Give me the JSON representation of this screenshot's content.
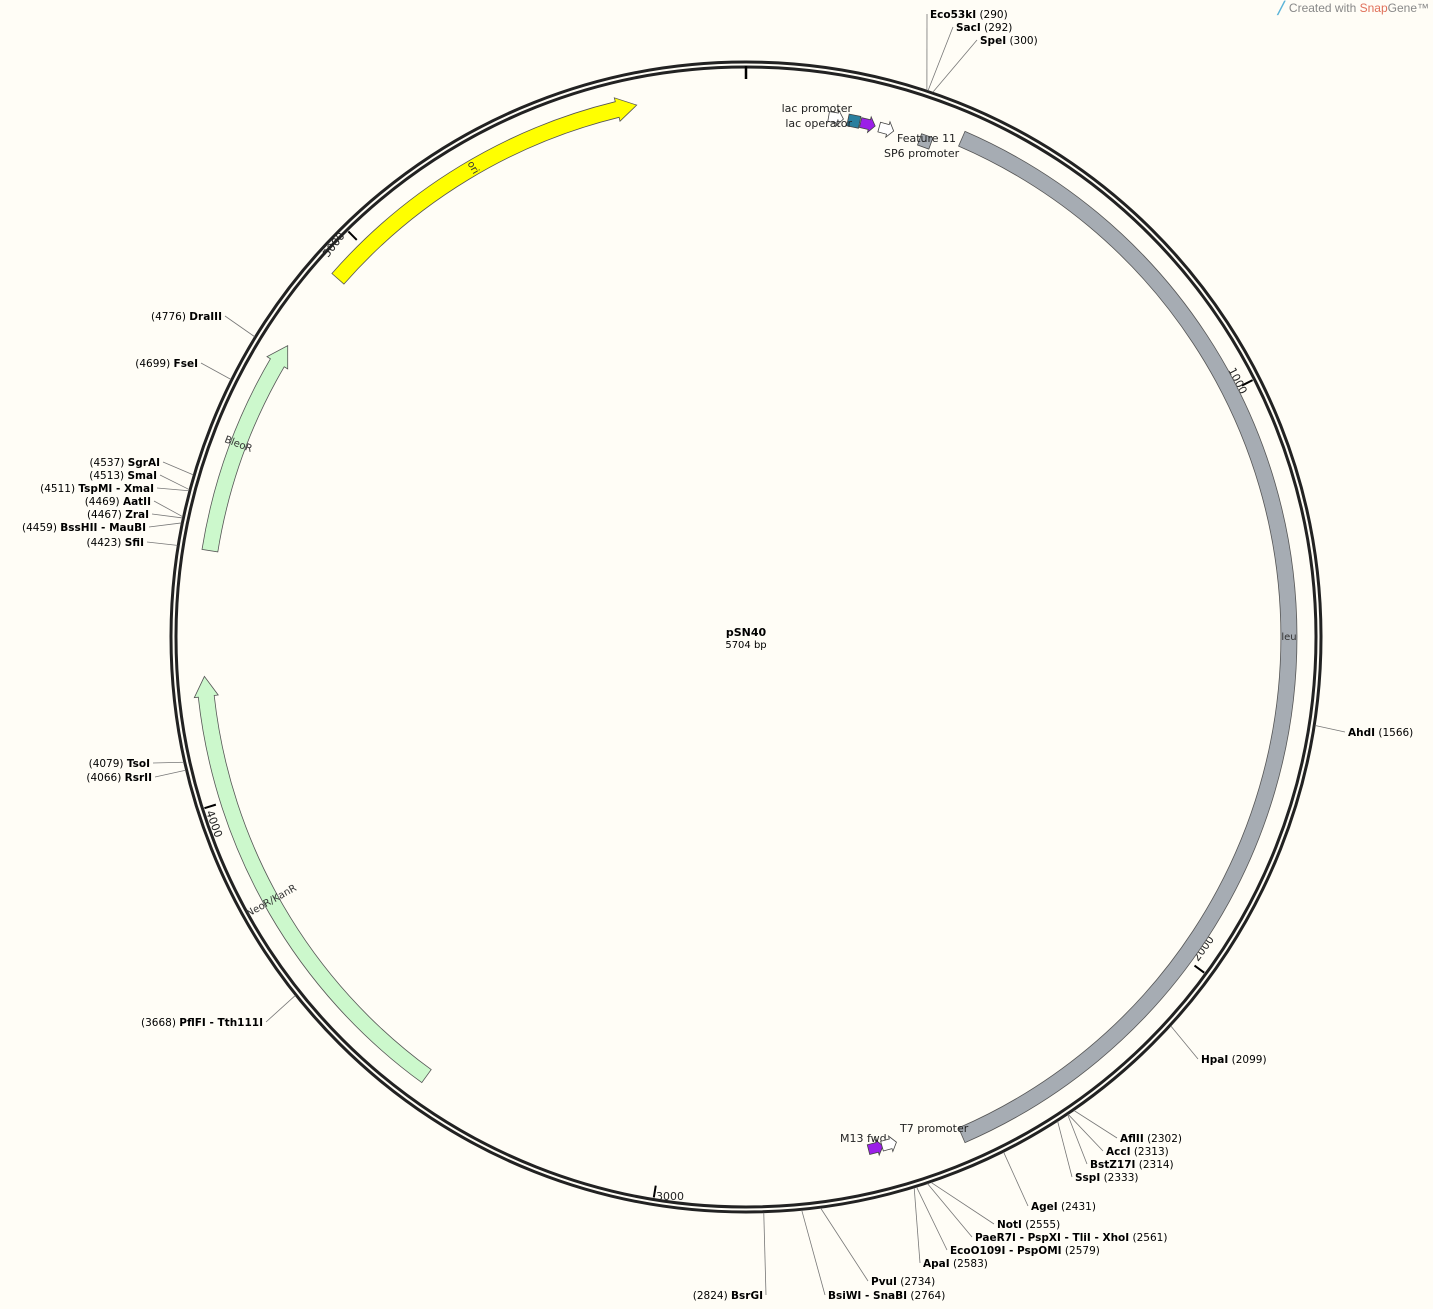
{
  "branding": {
    "prefix": "Created with ",
    "snap": "Snap",
    "gene": "Gene™",
    "logo_icon": "snapgene-logo-icon"
  },
  "plasmid": {
    "name": "pSN40",
    "length_label": "5704 bp",
    "length": 5704
  },
  "ticks": [
    {
      "bp": 1000,
      "label": "1000"
    },
    {
      "bp": 2000,
      "label": "2000"
    },
    {
      "bp": 3000,
      "label": "3000"
    },
    {
      "bp": 4000,
      "label": "4000"
    },
    {
      "bp": 5000,
      "label": "5000"
    }
  ],
  "features": [
    {
      "name": "ori",
      "start": 4932,
      "end": 5520,
      "type": "arrow",
      "color": "#ffff00",
      "direction": "forward"
    },
    {
      "name": "leu",
      "start": 371,
      "end": 2481,
      "type": "bar",
      "color": "#a6acb3",
      "direction": "none"
    },
    {
      "name": "BleoR",
      "start": 4423,
      "end": 4792,
      "type": "arrow",
      "color": "#ccf8cc",
      "direction": "forward"
    },
    {
      "name": "NeoR/KanR",
      "start": 3423,
      "end": 4212,
      "type": "arrow",
      "color": "#ccf8cc",
      "direction": "forward"
    }
  ],
  "small_features": [
    {
      "name": "lac promoter",
      "bp": 155,
      "color": "#ffffff",
      "shape": "arrow"
    },
    {
      "name": "lac operator",
      "bp": 187,
      "color": "#2a7f9e",
      "shape": "box"
    },
    {
      "name": "",
      "bp": 211,
      "color": "#9b1fe8",
      "shape": "arrow"
    },
    {
      "name": "SP6 promoter",
      "bp": 244,
      "color": "#ffffff",
      "shape": "arrow"
    },
    {
      "name": "Feature 11",
      "bp": 315,
      "color": "#a6acb3",
      "shape": "box"
    },
    {
      "name": "M13 fwd",
      "bp": 2627,
      "color": "#9b1fe8",
      "shape": "arrow-rev"
    },
    {
      "name": "T7 promoter",
      "bp": 2603,
      "color": "#ffffff",
      "shape": "arrow-rev"
    }
  ],
  "enzymes": [
    {
      "name": "Eco53kI",
      "pos": "(290)",
      "bp": 290
    },
    {
      "name": "SacI",
      "pos": "(292)",
      "bp": 292
    },
    {
      "name": "SpeI",
      "pos": "(300)",
      "bp": 300
    },
    {
      "name": "AhdI",
      "pos": "(1566)",
      "bp": 1566
    },
    {
      "name": "HpaI",
      "pos": "(2099)",
      "bp": 2099
    },
    {
      "name": "AflII",
      "pos": "(2302)",
      "bp": 2302
    },
    {
      "name": "AccI",
      "pos": "(2313)",
      "bp": 2313
    },
    {
      "name": "BstZ17I",
      "pos": "(2314)",
      "bp": 2314
    },
    {
      "name": "SspI",
      "pos": "(2333)",
      "bp": 2333
    },
    {
      "name": "AgeI",
      "pos": "(2431)",
      "bp": 2431
    },
    {
      "name": "NotI",
      "pos": "(2555)",
      "bp": 2555
    },
    {
      "name": "PaeR7I - PspXI - TliI - XhoI",
      "pos": "(2561)",
      "bp": 2561
    },
    {
      "name": "EcoO109I - PspOMI",
      "pos": "(2579)",
      "bp": 2579
    },
    {
      "name": "ApaI",
      "pos": "(2583)",
      "bp": 2583
    },
    {
      "name": "PvuI",
      "pos": "(2734)",
      "bp": 2734
    },
    {
      "name": "BsiWI - SnaBI",
      "pos": "(2764)",
      "bp": 2764
    },
    {
      "name": "BsrGI",
      "pos": "(2824)",
      "bp": 2824
    },
    {
      "name": "PflFI - Tth111I",
      "pos": "(3668)",
      "bp": 3668
    },
    {
      "name": "RsrII",
      "pos": "(4066)",
      "bp": 4066
    },
    {
      "name": "TsoI",
      "pos": "(4079)",
      "bp": 4079
    },
    {
      "name": "SfiI",
      "pos": "(4423)",
      "bp": 4423
    },
    {
      "name": "BssHII - MauBI",
      "pos": "(4459)",
      "bp": 4459
    },
    {
      "name": "ZraI",
      "pos": "(4467)",
      "bp": 4467
    },
    {
      "name": "AatII",
      "pos": "(4469)",
      "bp": 4469
    },
    {
      "name": "TspMI - XmaI",
      "pos": "(4511)",
      "bp": 4511
    },
    {
      "name": "SmaI",
      "pos": "(4513)",
      "bp": 4513
    },
    {
      "name": "SgrAI",
      "pos": "(4537)",
      "bp": 4537
    },
    {
      "name": "FseI",
      "pos": "(4699)",
      "bp": 4699
    },
    {
      "name": "DraIII",
      "pos": "(4776)",
      "bp": 4776
    }
  ]
}
